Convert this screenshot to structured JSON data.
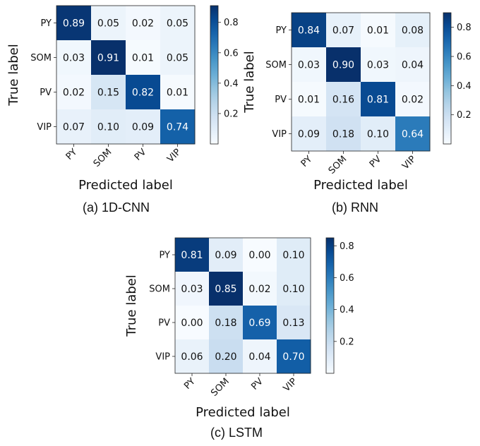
{
  "figure": {
    "captions": [
      "(a) 1D-CNN",
      "(b) RNN",
      "(c) LSTM"
    ]
  },
  "chart_data": [
    {
      "type": "heatmap",
      "xlabel": "Predicted label",
      "ylabel": "True label",
      "x_categories": [
        "PY",
        "SOM",
        "PV",
        "VIP"
      ],
      "y_categories": [
        "PY",
        "SOM",
        "PV",
        "VIP"
      ],
      "values": [
        [
          0.89,
          0.05,
          0.02,
          0.05
        ],
        [
          0.03,
          0.91,
          0.01,
          0.05
        ],
        [
          0.02,
          0.15,
          0.82,
          0.01
        ],
        [
          0.07,
          0.1,
          0.09,
          0.74
        ]
      ],
      "colormap": "Blues",
      "colorbar": {
        "range": [
          0.0,
          0.91
        ],
        "ticks": [
          "0.2",
          "0.4",
          "0.6",
          "0.8"
        ]
      }
    },
    {
      "type": "heatmap",
      "xlabel": "Predicted label",
      "ylabel": "True label",
      "x_categories": [
        "PY",
        "SOM",
        "PV",
        "VIP"
      ],
      "y_categories": [
        "PY",
        "SOM",
        "PV",
        "VIP"
      ],
      "values": [
        [
          0.84,
          0.07,
          0.01,
          0.08
        ],
        [
          0.03,
          0.9,
          0.03,
          0.04
        ],
        [
          0.01,
          0.16,
          0.81,
          0.02
        ],
        [
          0.09,
          0.18,
          0.1,
          0.64
        ]
      ],
      "colormap": "Blues",
      "colorbar": {
        "range": [
          0.0,
          0.9
        ],
        "ticks": [
          "0.2",
          "0.4",
          "0.6",
          "0.8"
        ]
      }
    },
    {
      "type": "heatmap",
      "xlabel": "Predicted label",
      "ylabel": "True label",
      "x_categories": [
        "PY",
        "SOM",
        "PV",
        "VIP"
      ],
      "y_categories": [
        "PY",
        "SOM",
        "PV",
        "VIP"
      ],
      "values": [
        [
          0.81,
          0.09,
          0.0,
          0.1
        ],
        [
          0.03,
          0.85,
          0.02,
          0.1
        ],
        [
          0.0,
          0.18,
          0.69,
          0.13
        ],
        [
          0.06,
          0.2,
          0.04,
          0.7
        ]
      ],
      "colormap": "Blues",
      "colorbar": {
        "range": [
          0.0,
          0.85
        ],
        "ticks": [
          "0.2",
          "0.4",
          "0.6",
          "0.8"
        ]
      }
    }
  ]
}
